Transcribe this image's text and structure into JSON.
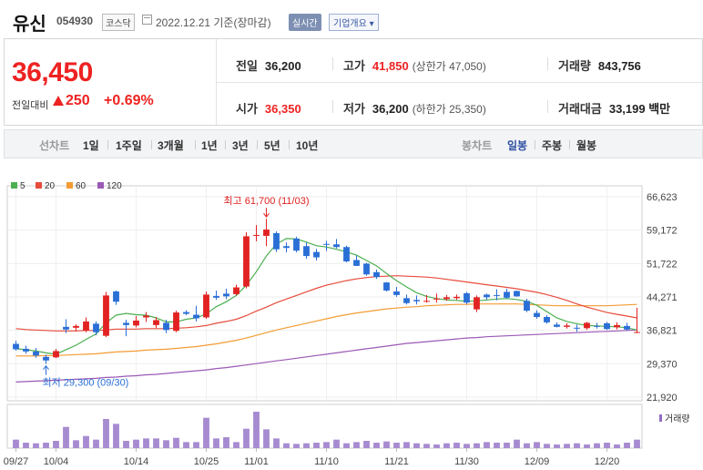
{
  "header": {
    "name": "유신",
    "code": "054930",
    "market": "코스닥",
    "date_text": "2022.12.21  기준(장마감)",
    "realtime_label": "실시간",
    "company_info_label": "기업개요 ▾"
  },
  "quote": {
    "price": "36,450",
    "change_label": "전일대비",
    "change": "250",
    "change_pct": "+0.69%",
    "up_color": "#e22222",
    "cells": {
      "prev_close_label": "전일",
      "prev_close": "36,200",
      "high_label": "고가",
      "high": "41,850",
      "upper_limit": "(상한가 47,050)",
      "volume_label": "거래량",
      "volume": "843,756",
      "open_label": "시가",
      "open": "36,350",
      "low_label": "저가",
      "low": "36,200",
      "lower_limit": "(하한가 25,350)",
      "amount_label": "거래대금",
      "amount": "33,199 백만"
    }
  },
  "period_bar": {
    "line_chart_label": "선차트",
    "periods": [
      "1일",
      "1주일",
      "3개월",
      "1년",
      "3년",
      "5년",
      "10년"
    ],
    "candle_label": "봉차트",
    "candle_types": [
      "일봉",
      "주봉",
      "월봉"
    ],
    "selected_candle": "일봉"
  },
  "chart_data": {
    "type": "candlestick",
    "legend": [
      {
        "name": "5",
        "color": "#4caf50"
      },
      {
        "name": "20",
        "color": "#e74c3c"
      },
      {
        "name": "60",
        "color": "#f39c34"
      },
      {
        "name": "120",
        "color": "#9b59b6"
      }
    ],
    "y_ticks": [
      "66,623",
      "59,172",
      "51,722",
      "44,271",
      "36,821",
      "29,370",
      "21,920"
    ],
    "ylim": [
      21920,
      66623
    ],
    "x_tick_labels": [
      "09/27",
      "10/04",
      "10/14",
      "10/25",
      "11/01",
      "11/10",
      "11/21",
      "11/30",
      "12/09",
      "12/20"
    ],
    "x_tick_index": [
      0,
      4,
      12,
      19,
      24,
      31,
      38,
      45,
      52,
      59
    ],
    "annotations": {
      "max": "최고 61,700 (11/03)",
      "min": "최저 29,300 (09/30)"
    },
    "volume_label": "거래량",
    "candles": [
      {
        "o": 33800,
        "h": 34500,
        "l": 32300,
        "c": 32600
      },
      {
        "o": 32700,
        "h": 33400,
        "l": 31600,
        "c": 32100
      },
      {
        "o": 32100,
        "h": 32900,
        "l": 30700,
        "c": 31200
      },
      {
        "o": 30900,
        "h": 31400,
        "l": 29300,
        "c": 30100
      },
      {
        "o": 30800,
        "h": 32700,
        "l": 30600,
        "c": 32200
      },
      {
        "o": 37600,
        "h": 39300,
        "l": 36200,
        "c": 37000
      },
      {
        "o": 37400,
        "h": 38200,
        "l": 36600,
        "c": 37800
      },
      {
        "o": 36800,
        "h": 39700,
        "l": 36400,
        "c": 38800
      },
      {
        "o": 38300,
        "h": 38800,
        "l": 35700,
        "c": 36400
      },
      {
        "o": 35600,
        "h": 45400,
        "l": 35300,
        "c": 44600
      },
      {
        "o": 45500,
        "h": 45700,
        "l": 42500,
        "c": 43200
      },
      {
        "o": 38500,
        "h": 39200,
        "l": 35500,
        "c": 38000
      },
      {
        "o": 37900,
        "h": 40000,
        "l": 37500,
        "c": 39000
      },
      {
        "o": 39700,
        "h": 40900,
        "l": 38700,
        "c": 40100
      },
      {
        "o": 38000,
        "h": 39800,
        "l": 37300,
        "c": 39100
      },
      {
        "o": 38500,
        "h": 39200,
        "l": 36200,
        "c": 36900
      },
      {
        "o": 36700,
        "h": 41200,
        "l": 36400,
        "c": 40800
      },
      {
        "o": 40900,
        "h": 41300,
        "l": 40200,
        "c": 40500
      },
      {
        "o": 40300,
        "h": 42300,
        "l": 38800,
        "c": 39500
      },
      {
        "o": 39700,
        "h": 45500,
        "l": 39400,
        "c": 44800
      },
      {
        "o": 44500,
        "h": 45700,
        "l": 43600,
        "c": 44100
      },
      {
        "o": 45000,
        "h": 46100,
        "l": 43800,
        "c": 44400
      },
      {
        "o": 44900,
        "h": 47000,
        "l": 44600,
        "c": 46400
      },
      {
        "o": 46600,
        "h": 58700,
        "l": 46200,
        "c": 57800
      },
      {
        "o": 58000,
        "h": 60300,
        "l": 56700,
        "c": 58100
      },
      {
        "o": 57900,
        "h": 61700,
        "l": 55600,
        "c": 59300
      },
      {
        "o": 58500,
        "h": 58900,
        "l": 54300,
        "c": 54900
      },
      {
        "o": 55600,
        "h": 56400,
        "l": 54200,
        "c": 55200
      },
      {
        "o": 57300,
        "h": 57700,
        "l": 54200,
        "c": 54600
      },
      {
        "o": 55600,
        "h": 56400,
        "l": 52800,
        "c": 53400
      },
      {
        "o": 54300,
        "h": 55000,
        "l": 52400,
        "c": 53100
      },
      {
        "o": 56100,
        "h": 56800,
        "l": 54500,
        "c": 55900
      },
      {
        "o": 56000,
        "h": 57200,
        "l": 55100,
        "c": 55400
      },
      {
        "o": 55400,
        "h": 55700,
        "l": 52000,
        "c": 52200
      },
      {
        "o": 52500,
        "h": 53500,
        "l": 51200,
        "c": 51200
      },
      {
        "o": 51700,
        "h": 51900,
        "l": 49000,
        "c": 49300
      },
      {
        "o": 49800,
        "h": 50400,
        "l": 48300,
        "c": 48700
      },
      {
        "o": 47500,
        "h": 47600,
        "l": 45500,
        "c": 45700
      },
      {
        "o": 45500,
        "h": 46500,
        "l": 44300,
        "c": 44700
      },
      {
        "o": 44000,
        "h": 44800,
        "l": 42600,
        "c": 42900
      },
      {
        "o": 43600,
        "h": 44600,
        "l": 42600,
        "c": 43300
      },
      {
        "o": 43300,
        "h": 44700,
        "l": 43000,
        "c": 43400
      },
      {
        "o": 43700,
        "h": 45000,
        "l": 43000,
        "c": 43900
      },
      {
        "o": 43800,
        "h": 44700,
        "l": 43400,
        "c": 44200
      },
      {
        "o": 44000,
        "h": 44800,
        "l": 43600,
        "c": 44300
      },
      {
        "o": 45100,
        "h": 45400,
        "l": 42600,
        "c": 43000
      },
      {
        "o": 41500,
        "h": 44600,
        "l": 40900,
        "c": 44200
      },
      {
        "o": 44800,
        "h": 45000,
        "l": 43600,
        "c": 44200
      },
      {
        "o": 44700,
        "h": 46000,
        "l": 43500,
        "c": 44500
      },
      {
        "o": 45400,
        "h": 46100,
        "l": 43900,
        "c": 44100
      },
      {
        "o": 45600,
        "h": 45700,
        "l": 44300,
        "c": 44400
      },
      {
        "o": 43400,
        "h": 43900,
        "l": 40900,
        "c": 41200
      },
      {
        "o": 40700,
        "h": 41300,
        "l": 39400,
        "c": 39800
      },
      {
        "o": 39800,
        "h": 40200,
        "l": 38300,
        "c": 38600
      },
      {
        "o": 38100,
        "h": 38600,
        "l": 37500,
        "c": 37600
      },
      {
        "o": 37600,
        "h": 38400,
        "l": 37200,
        "c": 37900
      },
      {
        "o": 37400,
        "h": 38100,
        "l": 36500,
        "c": 37200
      },
      {
        "o": 37300,
        "h": 38700,
        "l": 36900,
        "c": 38500
      },
      {
        "o": 37800,
        "h": 38500,
        "l": 37200,
        "c": 37700
      },
      {
        "o": 38400,
        "h": 38700,
        "l": 36900,
        "c": 37100
      },
      {
        "o": 37500,
        "h": 38600,
        "l": 37000,
        "c": 38000
      },
      {
        "o": 37800,
        "h": 38500,
        "l": 36700,
        "c": 37000
      },
      {
        "o": 36350,
        "h": 41850,
        "l": 36200,
        "c": 36450
      }
    ],
    "volumes": [
      14,
      9,
      8,
      9,
      12,
      35,
      13,
      20,
      14,
      48,
      40,
      12,
      14,
      16,
      16,
      13,
      17,
      10,
      10,
      50,
      16,
      18,
      10,
      32,
      60,
      31,
      16,
      8,
      7,
      8,
      9,
      10,
      14,
      8,
      10,
      12,
      9,
      11,
      9,
      10,
      8,
      7,
      6,
      8,
      9,
      7,
      8,
      10,
      9,
      9,
      14,
      8,
      10,
      7,
      6,
      7,
      8,
      6,
      8,
      9,
      6,
      9,
      14
    ],
    "ma5": [
      32700,
      32500,
      32200,
      31800,
      31500,
      32500,
      33500,
      34800,
      36000,
      38500,
      40200,
      40600,
      40300,
      40200,
      39600,
      38700,
      38700,
      39300,
      39600,
      40500,
      42100,
      43200,
      44600,
      46900,
      49900,
      53400,
      56100,
      57300,
      57200,
      56500,
      55700,
      55400,
      54900,
      54300,
      53600,
      52400,
      51200,
      49500,
      47900,
      46500,
      45200,
      44400,
      43900,
      43600,
      43500,
      43300,
      43400,
      43600,
      43800,
      43900,
      43700,
      43300,
      42400,
      41000,
      39600,
      38800,
      38300,
      37900,
      37800,
      37700,
      37600,
      37400,
      36900
    ],
    "ma20": [
      37200,
      37000,
      36900,
      36800,
      36700,
      36700,
      36700,
      36800,
      36800,
      36900,
      37100,
      37100,
      37100,
      37200,
      37200,
      37200,
      37300,
      37400,
      37600,
      37900,
      38400,
      38800,
      39300,
      40100,
      41100,
      42000,
      43000,
      43800,
      44600,
      45400,
      46200,
      46900,
      47400,
      47900,
      48300,
      48600,
      48800,
      48900,
      49000,
      48900,
      48800,
      48700,
      48500,
      48200,
      47900,
      47600,
      47300,
      47000,
      46700,
      46400,
      46100,
      45700,
      45300,
      44800,
      44200,
      43500,
      42700,
      42000,
      41400,
      40800,
      40400,
      40000,
      39600
    ],
    "ma60": [
      31100,
      31100,
      31100,
      31200,
      31200,
      31300,
      31400,
      31500,
      31600,
      31800,
      32000,
      32100,
      32200,
      32400,
      32500,
      32600,
      32800,
      33000,
      33200,
      33500,
      33800,
      34200,
      34600,
      35100,
      35700,
      36300,
      36900,
      37400,
      37900,
      38400,
      38900,
      39400,
      39900,
      40300,
      40700,
      41000,
      41300,
      41600,
      41800,
      42000,
      42100,
      42300,
      42400,
      42500,
      42600,
      42600,
      42700,
      42700,
      42700,
      42700,
      42700,
      42600,
      42500,
      42400,
      42300,
      42300,
      42300,
      42300,
      42300,
      42300,
      42400,
      42500,
      42600
    ],
    "ma120": [
      25300,
      25400,
      25500,
      25600,
      25700,
      25800,
      25900,
      26000,
      26100,
      26300,
      26400,
      26600,
      26700,
      26900,
      27000,
      27200,
      27400,
      27600,
      27800,
      28000,
      28300,
      28500,
      28800,
      29100,
      29400,
      29700,
      30000,
      30300,
      30600,
      30900,
      31200,
      31500,
      31800,
      32100,
      32400,
      32700,
      33000,
      33300,
      33600,
      33900,
      34100,
      34300,
      34500,
      34700,
      34900,
      35100,
      35200,
      35400,
      35500,
      35600,
      35700,
      35800,
      35900,
      36000,
      36100,
      36200,
      36300,
      36400,
      36500,
      36600,
      36700,
      36800,
      36900
    ]
  }
}
